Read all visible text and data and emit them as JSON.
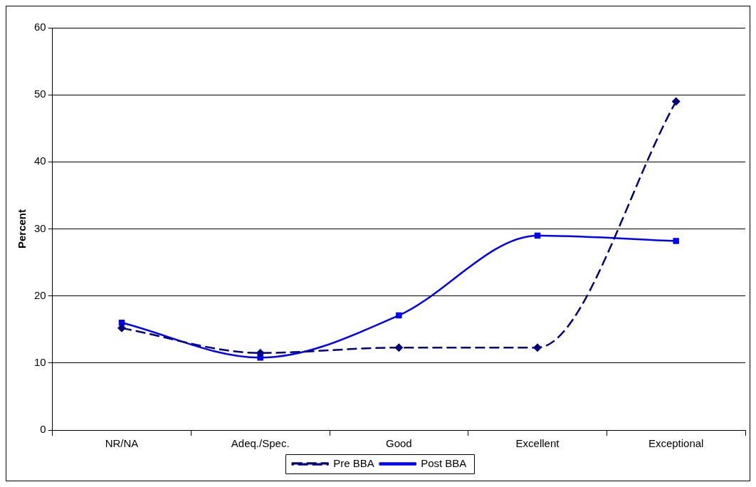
{
  "chart_data": {
    "type": "line",
    "ylabel": "Percent",
    "categories": [
      "NR/NA",
      "Adeq./Spec.",
      "Good",
      "Excellent",
      "Exceptional"
    ],
    "series": [
      {
        "name": "Pre BBA",
        "color": "#000080",
        "values": [
          15.2,
          11.5,
          12.3,
          12.3,
          49.0
        ],
        "marker": "diamond",
        "line_style": "dashed"
      },
      {
        "name": "Post BBA",
        "color": "#0000ff",
        "values": [
          16.0,
          10.8,
          17.1,
          29.0,
          28.2
        ],
        "marker": "square",
        "line_style": "solid"
      }
    ],
    "ylim": [
      0,
      60
    ],
    "yticks": [
      0,
      10,
      20,
      30,
      40,
      50,
      60
    ],
    "grid": "y",
    "legend": "bottom"
  }
}
